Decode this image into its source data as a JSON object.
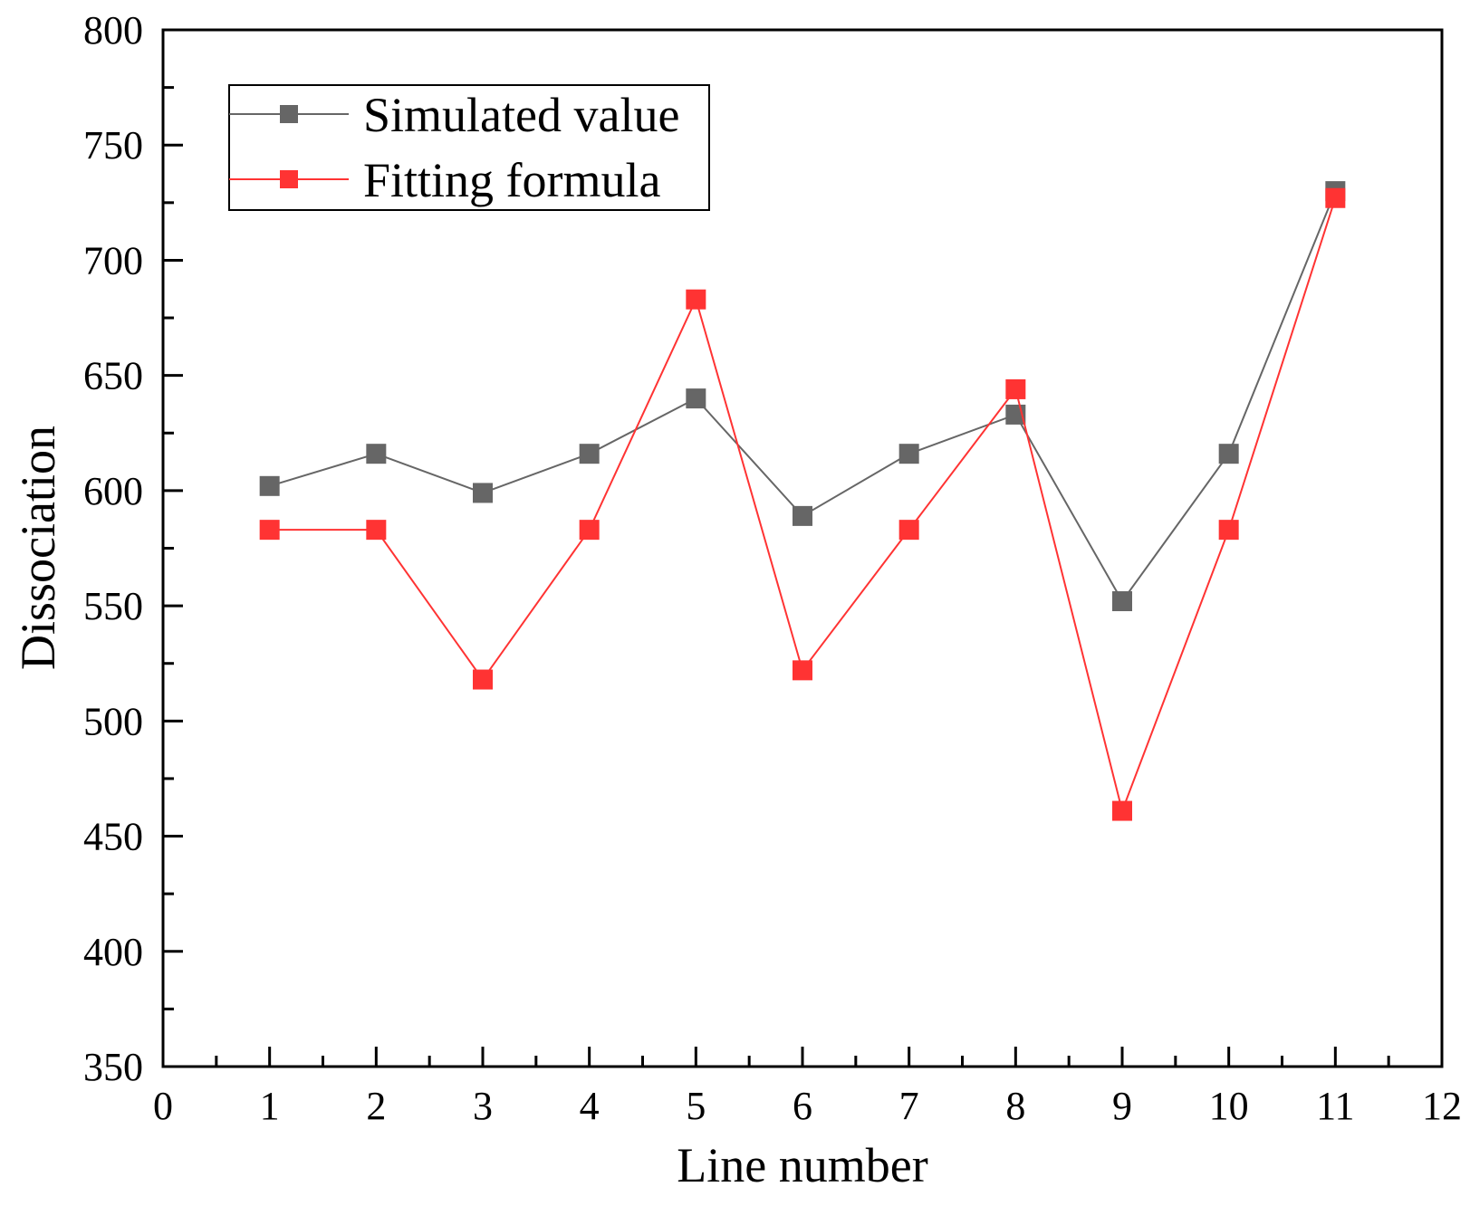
{
  "chart_data": {
    "type": "line",
    "title": "",
    "xlabel": "Line number",
    "ylabel": "Dissociation",
    "xlim": [
      0,
      12
    ],
    "ylim": [
      350,
      800
    ],
    "x_ticks": [
      0,
      1,
      2,
      3,
      4,
      5,
      6,
      7,
      8,
      9,
      10,
      11,
      12
    ],
    "y_ticks": [
      350,
      400,
      450,
      500,
      550,
      600,
      650,
      700,
      750,
      800
    ],
    "x": [
      1,
      2,
      3,
      4,
      5,
      6,
      7,
      8,
      9,
      10,
      11
    ],
    "series": [
      {
        "name": "Simulated value",
        "color": "#666666",
        "marker": "square",
        "values": [
          602,
          616,
          599,
          616,
          640,
          589,
          616,
          633,
          552,
          616,
          730
        ]
      },
      {
        "name": "Fitting formula",
        "color": "#ff3333",
        "marker": "square",
        "values": [
          583,
          583,
          518,
          583,
          683,
          522,
          583,
          644,
          461,
          583,
          727
        ]
      }
    ],
    "legend_position": "top-left",
    "grid": false
  }
}
